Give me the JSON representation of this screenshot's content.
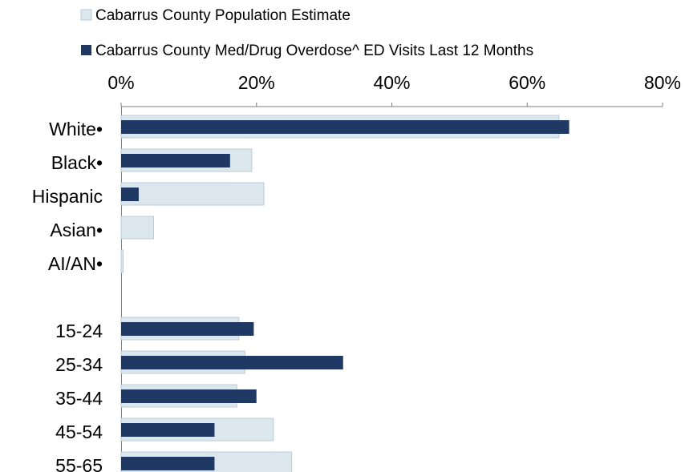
{
  "chart_data": {
    "type": "bar",
    "orientation": "horizontal",
    "categories": [
      "White•",
      "Black•",
      "Hispanic",
      "Asian•",
      "AI/AN•",
      "",
      "15-24",
      "25-34",
      "35-44",
      "45-54",
      "55-65"
    ],
    "series": [
      {
        "name": "Cabarrus County Population Estimate",
        "color": "#dce6ed",
        "border": "#b8ccda",
        "values": [
          64.7,
          19.3,
          21.1,
          4.8,
          0.3,
          null,
          17.4,
          18.3,
          17.1,
          22.5,
          25.2
        ]
      },
      {
        "name": "Cabarrus County Med/Drug Overdose^ ED Visits Last 12 Months",
        "color": "#1f3864",
        "values": [
          66.2,
          16.1,
          2.6,
          0,
          0,
          null,
          19.6,
          32.8,
          20.0,
          13.8,
          13.8
        ]
      }
    ],
    "xlim": [
      0,
      80
    ],
    "x_ticks": [
      "0%",
      "20%",
      "40%",
      "60%",
      "80%"
    ],
    "x_tick_values": [
      0,
      20,
      40,
      60,
      80
    ],
    "axis_position": "top",
    "legend_position": "top",
    "grid": false
  }
}
